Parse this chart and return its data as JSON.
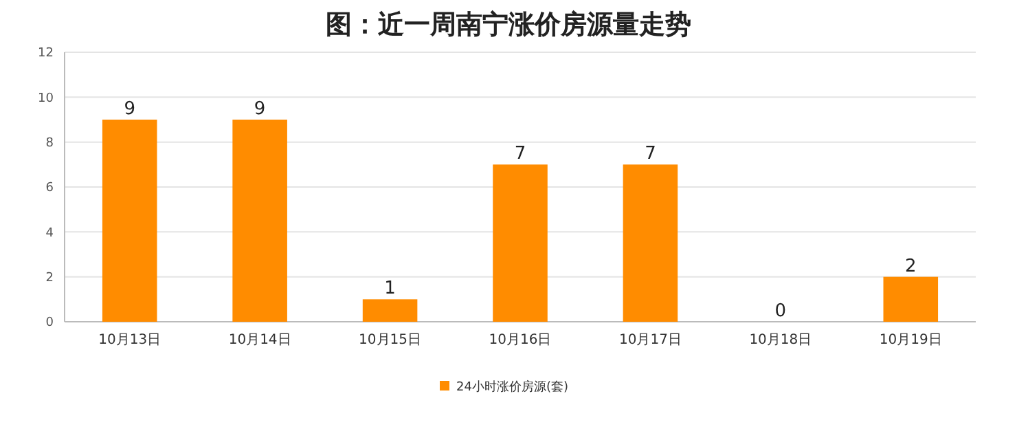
{
  "chart_data": {
    "type": "bar",
    "title": "图：近一周南宁涨价房源量走势",
    "categories": [
      "10月13日",
      "10月14日",
      "10月15日",
      "10月16日",
      "10月17日",
      "10月18日",
      "10月19日"
    ],
    "series": [
      {
        "name": "24小时涨价房源(套)",
        "color": "#ff8c00",
        "values": [
          9,
          9,
          1,
          7,
          7,
          0,
          2
        ]
      }
    ],
    "ylim": [
      0,
      12
    ],
    "yticks": [
      0,
      2,
      4,
      6,
      8,
      10,
      12
    ],
    "grid": "y",
    "legend": "bottom",
    "data_labels": true
  }
}
